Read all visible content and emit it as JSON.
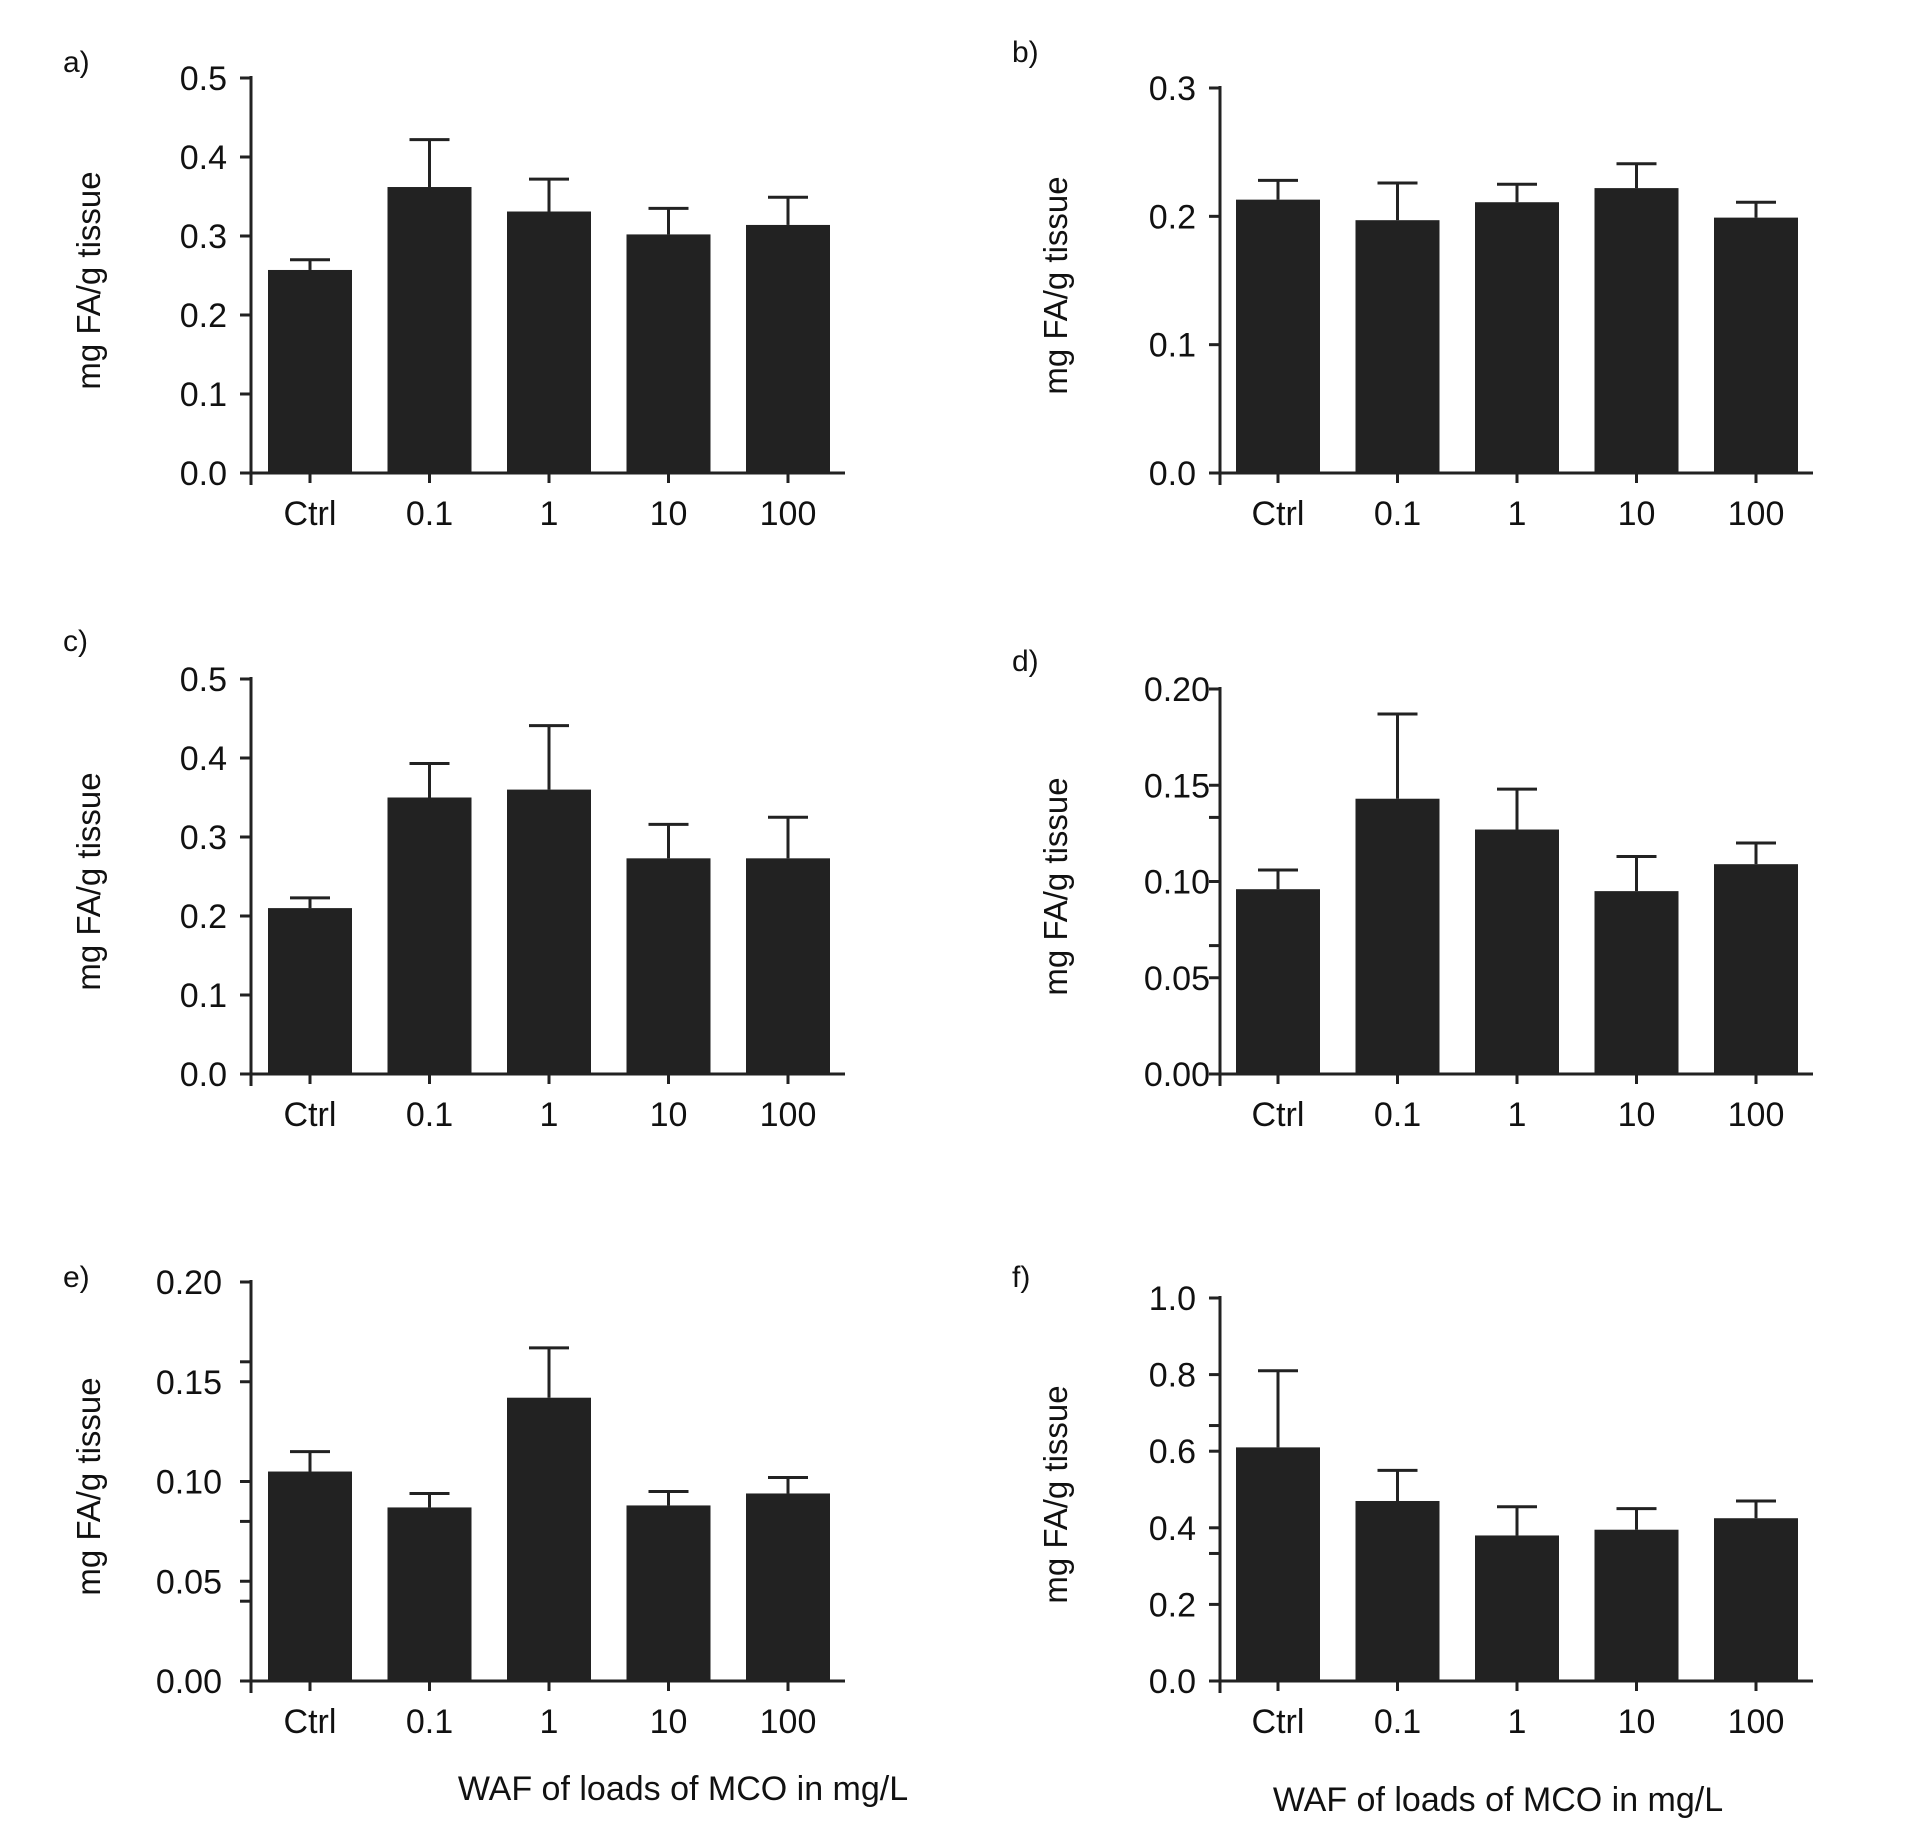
{
  "figure": {
    "x_axis_title_left": "WAF of loads of MCO in mg/L",
    "x_axis_title_right": "WAF of loads of MCO in mg/L"
  },
  "chart_data": [
    {
      "panel": "a)",
      "type": "bar",
      "categories": [
        "Ctrl",
        "0.1",
        "1",
        "10",
        "100"
      ],
      "values": [
        0.257,
        0.362,
        0.331,
        0.302,
        0.314
      ],
      "errors": [
        0.013,
        0.06,
        0.041,
        0.033,
        0.035
      ],
      "ylabel": "mg  FA/g tissue",
      "ylim": [
        0,
        0.5
      ],
      "yticks": [
        0.0,
        0.1,
        0.2,
        0.3,
        0.4,
        0.5
      ],
      "ytick_labels": [
        "0.0",
        "0.1",
        "0.2",
        "0.3",
        "0.4",
        "0.5"
      ],
      "minor_yticks": [],
      "xlabel": ""
    },
    {
      "panel": "b)",
      "type": "bar",
      "categories": [
        "Ctrl",
        "0.1",
        "1",
        "10",
        "100"
      ],
      "values": [
        0.213,
        0.197,
        0.211,
        0.222,
        0.199
      ],
      "errors": [
        0.015,
        0.029,
        0.014,
        0.019,
        0.012
      ],
      "ylabel": "mg  FA/g tissue",
      "ylim": [
        0,
        0.3
      ],
      "yticks": [
        0.0,
        0.1,
        0.2,
        0.3
      ],
      "ytick_labels": [
        "0.0",
        "0.1",
        "0.2",
        "0.3"
      ],
      "minor_yticks": [],
      "xlabel": ""
    },
    {
      "panel": "c)",
      "type": "bar",
      "categories": [
        "Ctrl",
        "0.1",
        "1",
        "10",
        "100"
      ],
      "values": [
        0.21,
        0.35,
        0.36,
        0.273,
        0.273
      ],
      "errors": [
        0.013,
        0.043,
        0.081,
        0.043,
        0.052
      ],
      "ylabel": "mg  FA/g tissue",
      "ylim": [
        0,
        0.5
      ],
      "yticks": [
        0.0,
        0.1,
        0.2,
        0.3,
        0.4,
        0.5
      ],
      "ytick_labels": [
        "0.0",
        "0.1",
        "0.2",
        "0.3",
        "0.4",
        "0.5"
      ],
      "minor_yticks": [],
      "xlabel": ""
    },
    {
      "panel": "d)",
      "type": "bar",
      "categories": [
        "Ctrl",
        "0.1",
        "1",
        "10",
        "100"
      ],
      "values": [
        0.096,
        0.143,
        0.127,
        0.095,
        0.109
      ],
      "errors": [
        0.01,
        0.044,
        0.021,
        0.018,
        0.011
      ],
      "ylabel": "mg  FA/g tissue",
      "ylim": [
        0,
        0.2
      ],
      "yticks": [
        0.0,
        0.05,
        0.1,
        0.15,
        0.2
      ],
      "ytick_labels": [
        "0.00",
        "0.05",
        "0.10",
        "0.15",
        "0.20"
      ],
      "minor_yticks": [
        0.0667,
        0.1333
      ],
      "xlabel": ""
    },
    {
      "panel": "e)",
      "type": "bar",
      "categories": [
        "Ctrl",
        "0.1",
        "1",
        "10",
        "100"
      ],
      "values": [
        0.105,
        0.087,
        0.142,
        0.088,
        0.094
      ],
      "errors": [
        0.01,
        0.007,
        0.025,
        0.007,
        0.008
      ],
      "ylabel": "mg  FA/g tissue",
      "ylim": [
        0,
        0.2
      ],
      "yticks": [
        0.0,
        0.05,
        0.1,
        0.15,
        0.2
      ],
      "ytick_labels": [
        "0.00",
        "0.05",
        "0.10",
        "0.15",
        "0.20"
      ],
      "minor_yticks": [
        0.04,
        0.08,
        0.16
      ],
      "xlabel": "WAF of loads of MCO in mg/L"
    },
    {
      "panel": "f)",
      "type": "bar",
      "categories": [
        "Ctrl",
        "0.1",
        "1",
        "10",
        "100"
      ],
      "values": [
        0.61,
        0.47,
        0.38,
        0.395,
        0.425
      ],
      "errors": [
        0.2,
        0.08,
        0.075,
        0.055,
        0.045
      ],
      "ylabel": "mg  FA/g tissue",
      "ylim": [
        0,
        1.0
      ],
      "yticks": [
        0.0,
        0.2,
        0.4,
        0.6,
        0.8,
        1.0
      ],
      "ytick_labels": [
        "0.0",
        "0.2",
        "0.4",
        "0.6",
        "0.8",
        "1.0"
      ],
      "minor_yticks": [
        0.333,
        0.667
      ],
      "xlabel": "WAF of loads of MCO in mg/L"
    }
  ]
}
